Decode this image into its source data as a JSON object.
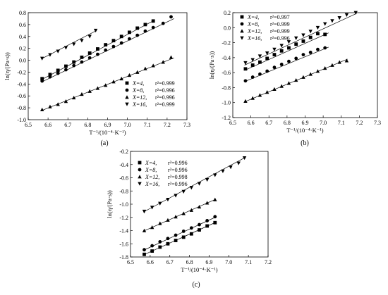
{
  "chart_data": [
    {
      "panel": "(a)",
      "type": "scatter",
      "xlabel": "T⁻¹/(10⁻⁴·K⁻¹)",
      "ylabel": "ln(η/(Pa·s))",
      "xlim": [
        6.5,
        7.3
      ],
      "ylim": [
        -1.0,
        0.8
      ],
      "xticks": [
        "6.5",
        "6.6",
        "6.7",
        "6.8",
        "6.9",
        "7.0",
        "7.1",
        "7.2",
        "7.3"
      ],
      "yticks": [
        "-1.0",
        "-0.8",
        "-0.6",
        "-0.4",
        "-0.2",
        "0.0",
        "0.2",
        "0.4",
        "0.6",
        "0.8"
      ],
      "legend_position": "bottom-right",
      "series": [
        {
          "name": "X=4, r²=0.999",
          "label": "X=4,",
          "r2": "r²=0.999",
          "marker": "square",
          "x": [
            6.57,
            6.61,
            6.65,
            6.69,
            6.73,
            6.77,
            6.81,
            6.85,
            6.89,
            6.93,
            6.97,
            7.01,
            7.05,
            7.09,
            7.13
          ],
          "y": [
            -0.31,
            -0.24,
            -0.17,
            -0.1,
            -0.03,
            0.05,
            0.12,
            0.19,
            0.26,
            0.33,
            0.4,
            0.47,
            0.54,
            0.6,
            0.66
          ],
          "fit": [
            [
              6.565,
              -0.33
            ],
            [
              7.135,
              0.67
            ]
          ]
        },
        {
          "name": "X=8, r²=0.996",
          "label": "X=8,",
          "r2": "r²=0.996",
          "marker": "circle",
          "x": [
            6.57,
            6.61,
            6.65,
            6.69,
            6.73,
            6.77,
            6.81,
            6.85,
            6.89,
            6.93,
            6.97,
            7.01,
            7.05,
            7.09,
            7.13,
            7.18,
            7.22
          ],
          "y": [
            -0.35,
            -0.28,
            -0.22,
            -0.16,
            -0.09,
            -0.03,
            0.04,
            0.1,
            0.17,
            0.23,
            0.29,
            0.36,
            0.42,
            0.49,
            0.55,
            0.62,
            0.73
          ],
          "fit": [
            [
              6.565,
              -0.37
            ],
            [
              7.235,
              0.7
            ]
          ]
        },
        {
          "name": "X=12, r²=0.996",
          "label": "X=12,",
          "r2": "r²=0.996",
          "marker": "triangle-up",
          "x": [
            6.57,
            6.61,
            6.65,
            6.69,
            6.73,
            6.77,
            6.81,
            6.85,
            6.89,
            6.93,
            6.97,
            7.01,
            7.05,
            7.09,
            7.13,
            7.18,
            7.22
          ],
          "y": [
            -0.83,
            -0.78,
            -0.74,
            -0.69,
            -0.63,
            -0.57,
            -0.52,
            -0.47,
            -0.42,
            -0.36,
            -0.31,
            -0.25,
            -0.2,
            -0.14,
            -0.09,
            -0.03,
            0.05
          ],
          "fit": [
            [
              6.565,
              -0.85
            ],
            [
              7.235,
              0.04
            ]
          ]
        },
        {
          "name": "X=16, r²=0.999",
          "label": "X=16,",
          "r2": "r²=0.999",
          "marker": "triangle-down",
          "x": [
            6.57,
            6.61,
            6.65,
            6.69,
            6.73,
            6.77,
            6.81,
            6.84
          ],
          "y": [
            0.03,
            0.09,
            0.15,
            0.21,
            0.27,
            0.33,
            0.4,
            0.5
          ],
          "fit": [
            [
              6.565,
              0.02
            ],
            [
              6.845,
              0.5
            ]
          ]
        }
      ]
    },
    {
      "panel": "(b)",
      "type": "scatter",
      "xlabel": "T⁻¹/(10⁻⁴·K⁻¹)",
      "ylabel": "ln(η/(Pa·s))",
      "xlim": [
        6.5,
        7.3
      ],
      "ylim": [
        -1.2,
        0.2
      ],
      "xticks": [
        "6.5",
        "6.6",
        "6.7",
        "6.8",
        "6.9",
        "7.0",
        "7.1",
        "7.2",
        "7.3"
      ],
      "yticks": [
        "-1.2",
        "-1.0",
        "-0.8",
        "-0.6",
        "-0.4",
        "-0.2",
        "0.0",
        "0.2"
      ],
      "legend_position": "top-left",
      "series": [
        {
          "name": "X=4, r²=0.997",
          "label": "X=4,",
          "r2": "r²=0.997",
          "marker": "square",
          "x": [
            6.57,
            6.61,
            6.65,
            6.69,
            6.73,
            6.77,
            6.81,
            6.85,
            6.89,
            6.93,
            6.97,
            7.01
          ],
          "y": [
            -0.55,
            -0.5,
            -0.46,
            -0.41,
            -0.36,
            -0.31,
            -0.27,
            -0.22,
            -0.18,
            -0.13,
            -0.08,
            -0.09
          ],
          "fit": [
            [
              6.565,
              -0.57
            ],
            [
              7.03,
              -0.07
            ]
          ]
        },
        {
          "name": "X=8, r²=0.999",
          "label": "X=8,",
          "r2": "r²=0.999",
          "marker": "circle",
          "x": [
            6.57,
            6.61,
            6.65,
            6.69,
            6.73,
            6.77,
            6.81,
            6.85,
            6.89,
            6.93,
            6.97,
            7.01
          ],
          "y": [
            -0.71,
            -0.66,
            -0.62,
            -0.58,
            -0.53,
            -0.49,
            -0.45,
            -0.41,
            -0.36,
            -0.33,
            -0.29,
            -0.27
          ],
          "fit": [
            [
              6.565,
              -0.72
            ],
            [
              7.03,
              -0.26
            ]
          ]
        },
        {
          "name": "X=12, r²=0.999",
          "label": "X=12,",
          "r2": "r²=0.999",
          "marker": "triangle-up",
          "x": [
            6.57,
            6.61,
            6.65,
            6.69,
            6.73,
            6.77,
            6.81,
            6.85,
            6.89,
            6.93,
            6.97,
            7.01,
            7.05,
            7.09,
            7.13
          ],
          "y": [
            -0.98,
            -0.94,
            -0.9,
            -0.86,
            -0.82,
            -0.78,
            -0.74,
            -0.7,
            -0.66,
            -0.62,
            -0.58,
            -0.54,
            -0.5,
            -0.46,
            -0.44
          ],
          "fit": [
            [
              6.565,
              -0.99
            ],
            [
              7.135,
              -0.42
            ]
          ]
        },
        {
          "name": "X=16, r²=0.996",
          "label": "X=16,",
          "r2": "r²=0.996",
          "marker": "triangle-down",
          "x": [
            6.57,
            6.61,
            6.65,
            6.69,
            6.73,
            6.77,
            6.81,
            6.85,
            6.89,
            6.93,
            6.97,
            7.01,
            7.05,
            7.09,
            7.13,
            7.18
          ],
          "y": [
            -0.47,
            -0.43,
            -0.38,
            -0.34,
            -0.29,
            -0.24,
            -0.19,
            -0.14,
            -0.1,
            -0.05,
            0.0,
            0.05,
            0.09,
            0.13,
            0.17,
            0.2
          ],
          "fit": [
            [
              6.565,
              -0.5
            ],
            [
              7.185,
              0.19
            ]
          ]
        }
      ]
    },
    {
      "panel": "(c)",
      "type": "scatter",
      "xlabel": "T⁻¹/(10⁻⁴·K⁻¹)",
      "ylabel": "ln(η/(Pa·s))",
      "xlim": [
        6.5,
        7.2
      ],
      "ylim": [
        -1.8,
        -0.2
      ],
      "xticks": [
        "6.5",
        "6.6",
        "6.7",
        "6.8",
        "6.9",
        "7.0",
        "7.1",
        "7.2"
      ],
      "yticks": [
        "-1.8",
        "-1.6",
        "-1.4",
        "-1.2",
        "-1.0",
        "-0.8",
        "-0.6",
        "-0.4",
        "-0.2"
      ],
      "legend_position": "top-left",
      "series": [
        {
          "name": "X=4, r²=0.996",
          "label": "X=4,",
          "r2": "r²=0.996",
          "marker": "square",
          "x": [
            6.57,
            6.61,
            6.65,
            6.69,
            6.73,
            6.77,
            6.81,
            6.85,
            6.89,
            6.93
          ],
          "y": [
            -1.76,
            -1.71,
            -1.65,
            -1.6,
            -1.55,
            -1.5,
            -1.45,
            -1.39,
            -1.33,
            -1.28
          ],
          "fit": [
            [
              6.565,
              -1.77
            ],
            [
              6.93,
              -1.28
            ]
          ]
        },
        {
          "name": "X=8, r²=0.996",
          "label": "X=8,",
          "r2": "r²=0.996",
          "marker": "circle",
          "x": [
            6.57,
            6.61,
            6.65,
            6.69,
            6.73,
            6.77,
            6.81,
            6.85,
            6.89,
            6.93
          ],
          "y": [
            -1.69,
            -1.63,
            -1.57,
            -1.52,
            -1.47,
            -1.41,
            -1.36,
            -1.31,
            -1.25,
            -1.19
          ],
          "fit": [
            [
              6.565,
              -1.7
            ],
            [
              6.93,
              -1.2
            ]
          ]
        },
        {
          "name": "X=12, r²=0.998",
          "label": "X=12,",
          "r2": "r²=0.998",
          "marker": "triangle-up",
          "x": [
            6.57,
            6.61,
            6.65,
            6.69,
            6.73,
            6.77,
            6.81,
            6.85,
            6.89,
            6.93
          ],
          "y": [
            -1.4,
            -1.35,
            -1.29,
            -1.24,
            -1.19,
            -1.14,
            -1.09,
            -1.04,
            -0.98,
            -0.93
          ],
          "fit": [
            [
              6.565,
              -1.41
            ],
            [
              6.93,
              -0.93
            ]
          ]
        },
        {
          "name": "X=16, r²=0.996",
          "label": "X=16,",
          "r2": "r²=0.996",
          "marker": "triangle-down",
          "x": [
            6.57,
            6.61,
            6.65,
            6.69,
            6.73,
            6.77,
            6.81,
            6.85,
            6.89,
            6.93,
            6.97,
            7.01,
            7.05,
            7.08
          ],
          "y": [
            -1.11,
            -1.05,
            -0.99,
            -0.93,
            -0.87,
            -0.81,
            -0.75,
            -0.69,
            -0.63,
            -0.56,
            -0.5,
            -0.44,
            -0.38,
            -0.3
          ],
          "fit": [
            [
              6.565,
              -1.12
            ],
            [
              7.085,
              -0.29
            ]
          ]
        }
      ]
    }
  ]
}
